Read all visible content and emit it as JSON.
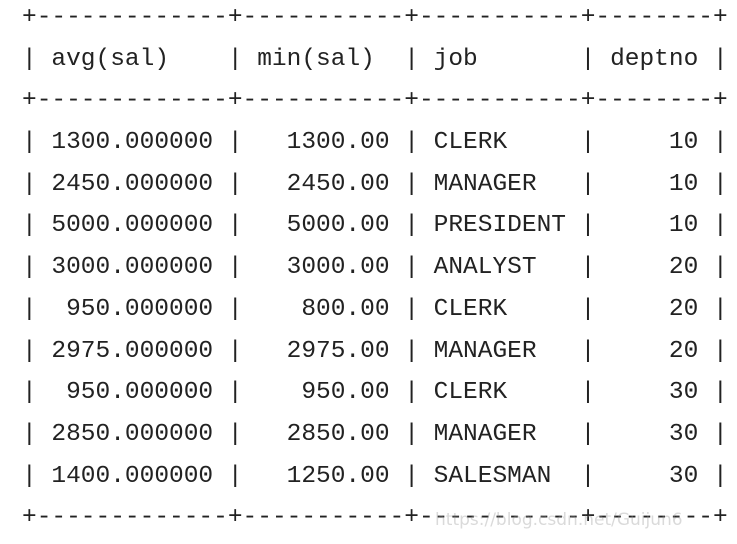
{
  "table": {
    "header": [
      "avg(sal)",
      "min(sal)",
      "job",
      "deptno"
    ],
    "rows": [
      [
        "1300.000000",
        "1300.00",
        "CLERK",
        "10"
      ],
      [
        "2450.000000",
        "2450.00",
        "MANAGER",
        "10"
      ],
      [
        "5000.000000",
        "5000.00",
        "PRESIDENT",
        "10"
      ],
      [
        "3000.000000",
        "3000.00",
        "ANALYST",
        "20"
      ],
      [
        "950.000000",
        "800.00",
        "CLERK",
        "20"
      ],
      [
        "2975.000000",
        "2975.00",
        "MANAGER",
        "20"
      ],
      [
        "950.000000",
        "950.00",
        "CLERK",
        "30"
      ],
      [
        "2850.000000",
        "2850.00",
        "MANAGER",
        "30"
      ],
      [
        "1400.000000",
        "1250.00",
        "SALESMAN",
        "30"
      ]
    ]
  },
  "watermark": "https://blog.csdn.net/Guijun6"
}
